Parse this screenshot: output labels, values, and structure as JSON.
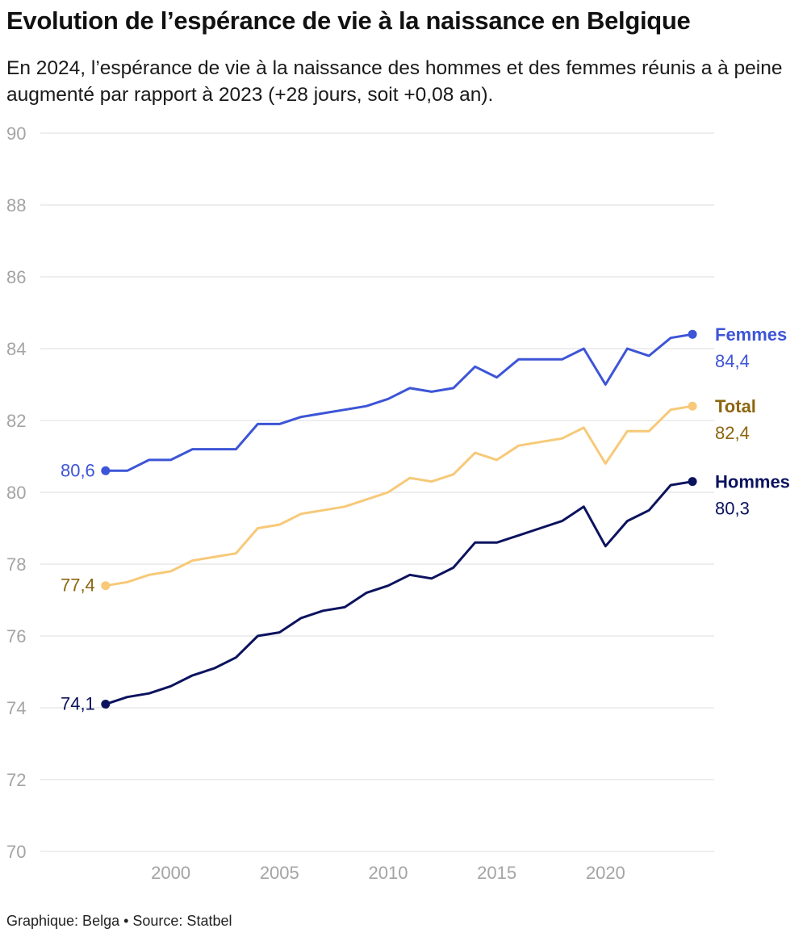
{
  "title": "Evolution de l’espérance de vie à la naissance en Belgique",
  "subtitle": "En 2024, l’espérance de vie à la naissance des hommes et des femmes réunis a à peine augmenté par rapport à 2023 (+28 jours, soit +0,08 an).",
  "footer": "Graphique: Belga • Source: Statbel",
  "chart_data": {
    "type": "line",
    "title": "Evolution de l’espérance de vie à la naissance en Belgique",
    "xlabel": "",
    "ylabel": "",
    "xlim": [
      1994,
      2025
    ],
    "ylim": [
      70,
      90
    ],
    "grid": true,
    "x_ticks": [
      2000,
      2005,
      2010,
      2015,
      2020
    ],
    "x_tick_labels": [
      "2000",
      "2005",
      "2010",
      "2015",
      "2020"
    ],
    "y_ticks": [
      70,
      72,
      74,
      76,
      78,
      80,
      82,
      84,
      86,
      88,
      90
    ],
    "y_tick_labels": [
      "70",
      "72",
      "74",
      "76",
      "78",
      "80",
      "82",
      "84",
      "86",
      "88",
      "90"
    ],
    "x": [
      1997,
      1998,
      1999,
      2000,
      2001,
      2002,
      2003,
      2004,
      2005,
      2006,
      2007,
      2008,
      2009,
      2010,
      2011,
      2012,
      2013,
      2014,
      2015,
      2016,
      2017,
      2018,
      2019,
      2020,
      2021,
      2022,
      2023,
      2024
    ],
    "series": [
      {
        "name": "Femmes",
        "color": "#3d55d6",
        "values": [
          80.6,
          80.6,
          80.9,
          80.9,
          81.2,
          81.2,
          81.2,
          81.9,
          81.9,
          82.1,
          82.2,
          82.3,
          82.4,
          82.6,
          82.9,
          82.8,
          82.9,
          83.5,
          83.2,
          83.7,
          83.7,
          83.7,
          84.0,
          83.0,
          84.0,
          83.8,
          84.3,
          84.4
        ],
        "start_label": "80,6",
        "end_label": "84,4"
      },
      {
        "name": "Total",
        "color": "#f7c978",
        "label_color": "#8c6610",
        "values": [
          77.4,
          77.5,
          77.7,
          77.8,
          78.1,
          78.2,
          78.3,
          79.0,
          79.1,
          79.4,
          79.5,
          79.6,
          79.8,
          80.0,
          80.4,
          80.3,
          80.5,
          81.1,
          80.9,
          81.3,
          81.4,
          81.5,
          81.8,
          80.8,
          81.7,
          81.7,
          82.3,
          82.4
        ],
        "start_label": "77,4",
        "end_label": "82,4"
      },
      {
        "name": "Hommes",
        "color": "#0c135e",
        "values": [
          74.1,
          74.3,
          74.4,
          74.6,
          74.9,
          75.1,
          75.4,
          76.0,
          76.1,
          76.5,
          76.7,
          76.8,
          77.2,
          77.4,
          77.7,
          77.6,
          77.9,
          78.6,
          78.6,
          78.8,
          79.0,
          79.2,
          79.6,
          78.5,
          79.2,
          79.5,
          80.2,
          80.3
        ],
        "start_label": "74,1",
        "end_label": "80,3"
      }
    ]
  }
}
